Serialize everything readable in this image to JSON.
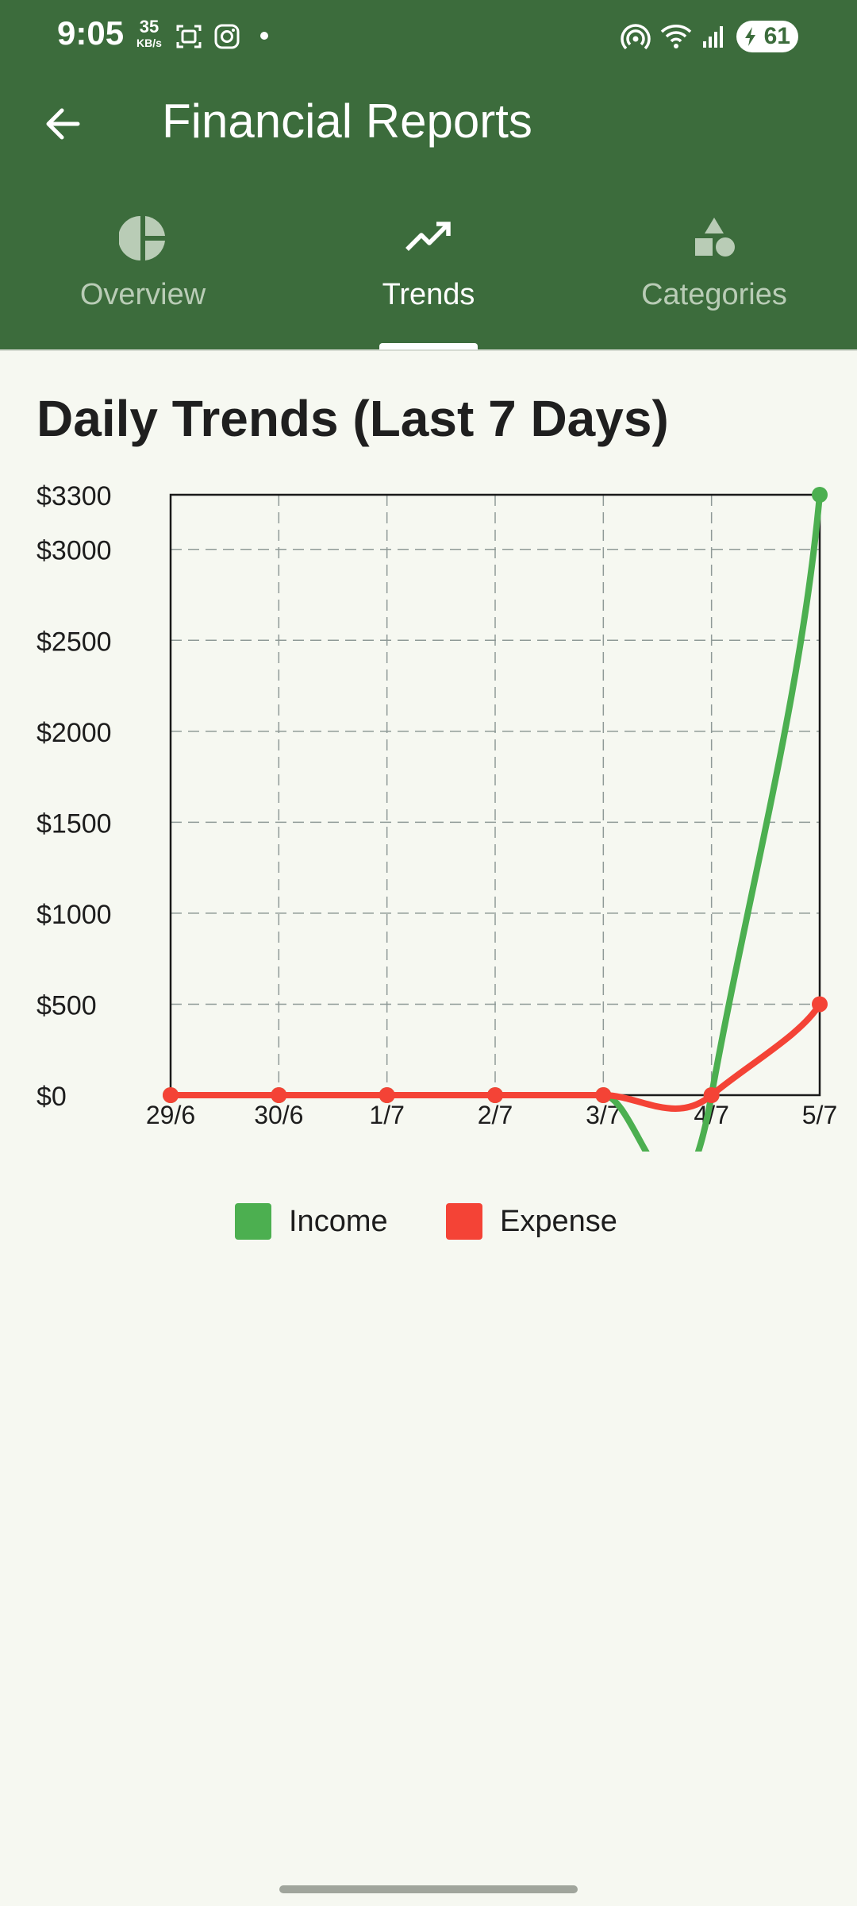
{
  "status": {
    "time": "9:05",
    "speed_value": "35",
    "speed_unit": "KB/s",
    "battery": "61"
  },
  "appbar": {
    "title": "Financial Reports"
  },
  "tabs": [
    {
      "label": "Overview",
      "icon": "pie-chart-icon",
      "active": false
    },
    {
      "label": "Trends",
      "icon": "trending-up-icon",
      "active": true
    },
    {
      "label": "Categories",
      "icon": "shapes-icon",
      "active": false
    }
  ],
  "section_title": "Daily Trends (Last 7 Days)",
  "colors": {
    "accent": "#3c6c3c",
    "income": "#4caf50",
    "expense": "#f44336"
  },
  "chart_data": {
    "type": "line",
    "categories": [
      "29/6",
      "30/6",
      "1/7",
      "2/7",
      "3/7",
      "4/7",
      "5/7"
    ],
    "y_ticks": [
      "$0",
      "$500",
      "$1000",
      "$1500",
      "$2000",
      "$2500",
      "$3000",
      "$3300"
    ],
    "y_tick_values": [
      0,
      500,
      1000,
      1500,
      2000,
      2500,
      3000,
      3300
    ],
    "ylim": [
      0,
      3300
    ],
    "grid": true,
    "legend_position": "bottom",
    "series": [
      {
        "name": "Income",
        "values": [
          0,
          0,
          0,
          0,
          0,
          0,
          3300
        ]
      },
      {
        "name": "Expense",
        "values": [
          0,
          0,
          0,
          0,
          0,
          0,
          500
        ]
      }
    ]
  }
}
